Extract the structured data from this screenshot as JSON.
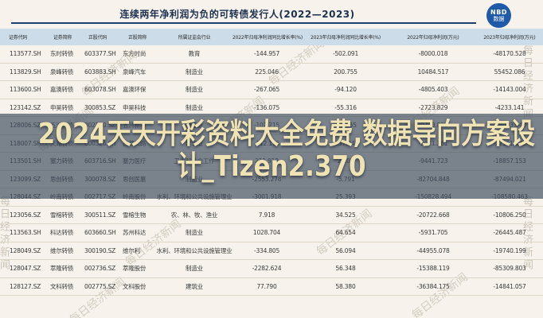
{
  "page": {
    "title": "连续两年净利润为负的可转债发行人(2022—2023)",
    "logo": {
      "line1": "NBD",
      "line2": "数据"
    }
  },
  "watermark": {
    "text": "每日经济新闻"
  },
  "overlay": {
    "line1": "2024天天开彩资料大全免费,数据导向方案设",
    "line2": "计_Tizen2.370"
  },
  "colors": {
    "background": "#f7f3ec",
    "title_navy": "#1c3150",
    "rule_navy": "#1d3e70",
    "logo_blue": "#1e5aa7",
    "header_blue": "#ccdce8",
    "band_slate": "#3e4d5f",
    "promo_gold": "#efe3b4"
  },
  "table": {
    "columns": [
      "证券代码",
      "证券简称",
      "正股代码",
      "正股简称",
      "所属证监会行业",
      "2022年归母净利润同比增长率(%)",
      "2023年归母净利润同比增长率(%)",
      "2022年归母净利润(万元)",
      "2023年归母净利润(万元)"
    ],
    "rows": [
      [
        "113577.SH",
        "东时转债",
        "603377.SH",
        "东方时尚",
        "教育",
        "-144.957",
        "-502.091",
        "-8000.018",
        "-48170.528"
      ],
      [
        "113829.SH",
        "泉峰转债",
        "603883.SH",
        "泉峰汽车",
        "制造业",
        "225.046",
        "200.755",
        "10484.517",
        "55452.086"
      ],
      [
        "113600.SH",
        "嘉澳转债",
        "603078.SH",
        "嘉澳环保",
        "制造业",
        "-267.065",
        "-94.120",
        "-4805.403",
        "-14143.004"
      ],
      [
        "123142.SZ",
        "申昊转债",
        "300853.SZ",
        "申昊科技",
        "制造业",
        "-136.075",
        "-55.316",
        "-2723.829",
        "-4233.141"
      ],
      [
        "128006.SZ",
        "五洲转债",
        "002160.SZ",
        "五洲新春",
        "制造业",
        "-102.215",
        "-55.855",
        "-9720.829",
        "-58003.048"
      ],
      [
        "118007.SH",
        "天路转债",
        "600326.SH",
        "西藏天路",
        "建筑业",
        "-112.115",
        "-337.041",
        "-5071.361",
        "-22161.172"
      ],
      [
        "113501.SH",
        "塞力转债",
        "603716.SH",
        "塞力医疗",
        "卫生和社会工作",
        "211.918",
        "2.105",
        "-9441.723",
        "-18857.153"
      ],
      [
        "123099.SZ",
        "思创转债",
        "300078.SZ",
        "思创医惠",
        "制造业",
        "-2553.278",
        "-5.791",
        "-82704.848",
        "-87494.021"
      ],
      [
        "128044.SZ",
        "岭南转债",
        "002717.SZ",
        "岭南股份",
        "水利、环境和公共设施管理业",
        "-3001.918",
        "25.393",
        "-150828.494",
        "-108580.463"
      ],
      [
        "123056.SZ",
        "雪榕转债",
        "300511.SZ",
        "雪榕生物",
        "农、林、牧、渔业",
        "7.918",
        "34.525",
        "-20722.668",
        "-10806.250"
      ],
      [
        "113563.SH",
        "科达转债",
        "603660.SH",
        "苏州科达",
        "制造业",
        "1028.704",
        "64.654",
        "-5931.705",
        "-26445.487"
      ],
      [
        "128049.SZ",
        "维尔转债",
        "300190.SZ",
        "维尔利",
        "水利、环境和公共设施管理业",
        "-334.805",
        "56.094",
        "-44955.078",
        "-19740.199"
      ],
      [
        "128047.SZ",
        "萃隆转债",
        "002736.SZ",
        "萃隆股份",
        "制造业",
        "-2282.624",
        "56.348",
        "-15388.119",
        "-85309.803"
      ],
      [
        "128127.SZ",
        "文科转债",
        "002775.SZ",
        "文科股份",
        "建筑业",
        "77.790",
        "58.380",
        "-36384.175",
        "-14841.057"
      ]
    ]
  }
}
